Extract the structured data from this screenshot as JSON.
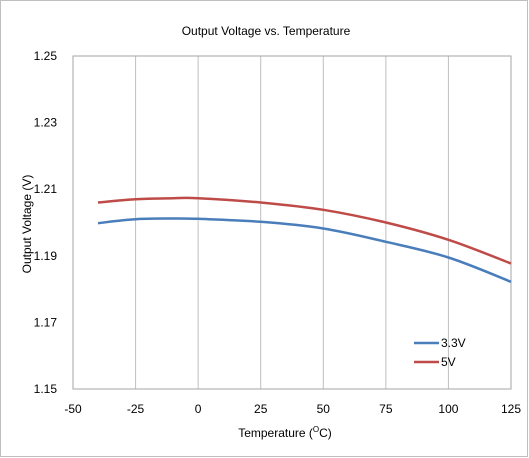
{
  "chart_data": {
    "type": "line",
    "title": "Output Voltage vs. Temperature",
    "xlabel": "Temperature (°C)",
    "xlabel_main": "Temperature (",
    "xlabel_sup": "O",
    "xlabel_tail": "C)",
    "ylabel": "Output Voltage (V)",
    "xlim": [
      -50,
      125
    ],
    "ylim": [
      1.15,
      1.25
    ],
    "xticks": [
      "-50",
      "-25",
      "0",
      "25",
      "50",
      "75",
      "100",
      "125"
    ],
    "yticks": [
      "1.25",
      "1.23",
      "1.21",
      "1.19",
      "1.17",
      "1.15"
    ],
    "grid": "vertical",
    "legend_position": "bottom-right",
    "series": [
      {
        "name": "3.3V",
        "color": "#4a7ebb",
        "x": [
          -40,
          -25,
          -10,
          0,
          25,
          50,
          75,
          100,
          125
        ],
        "y": [
          1.1998,
          1.201,
          1.2012,
          1.2011,
          1.2002,
          1.1982,
          1.1942,
          1.1895,
          1.1822
        ]
      },
      {
        "name": "5V",
        "color": "#be4b48",
        "x": [
          -40,
          -25,
          -10,
          0,
          25,
          50,
          75,
          100,
          125
        ],
        "y": [
          1.206,
          1.207,
          1.2073,
          1.2073,
          1.206,
          1.2038,
          1.2,
          1.1948,
          1.1877
        ]
      }
    ]
  }
}
